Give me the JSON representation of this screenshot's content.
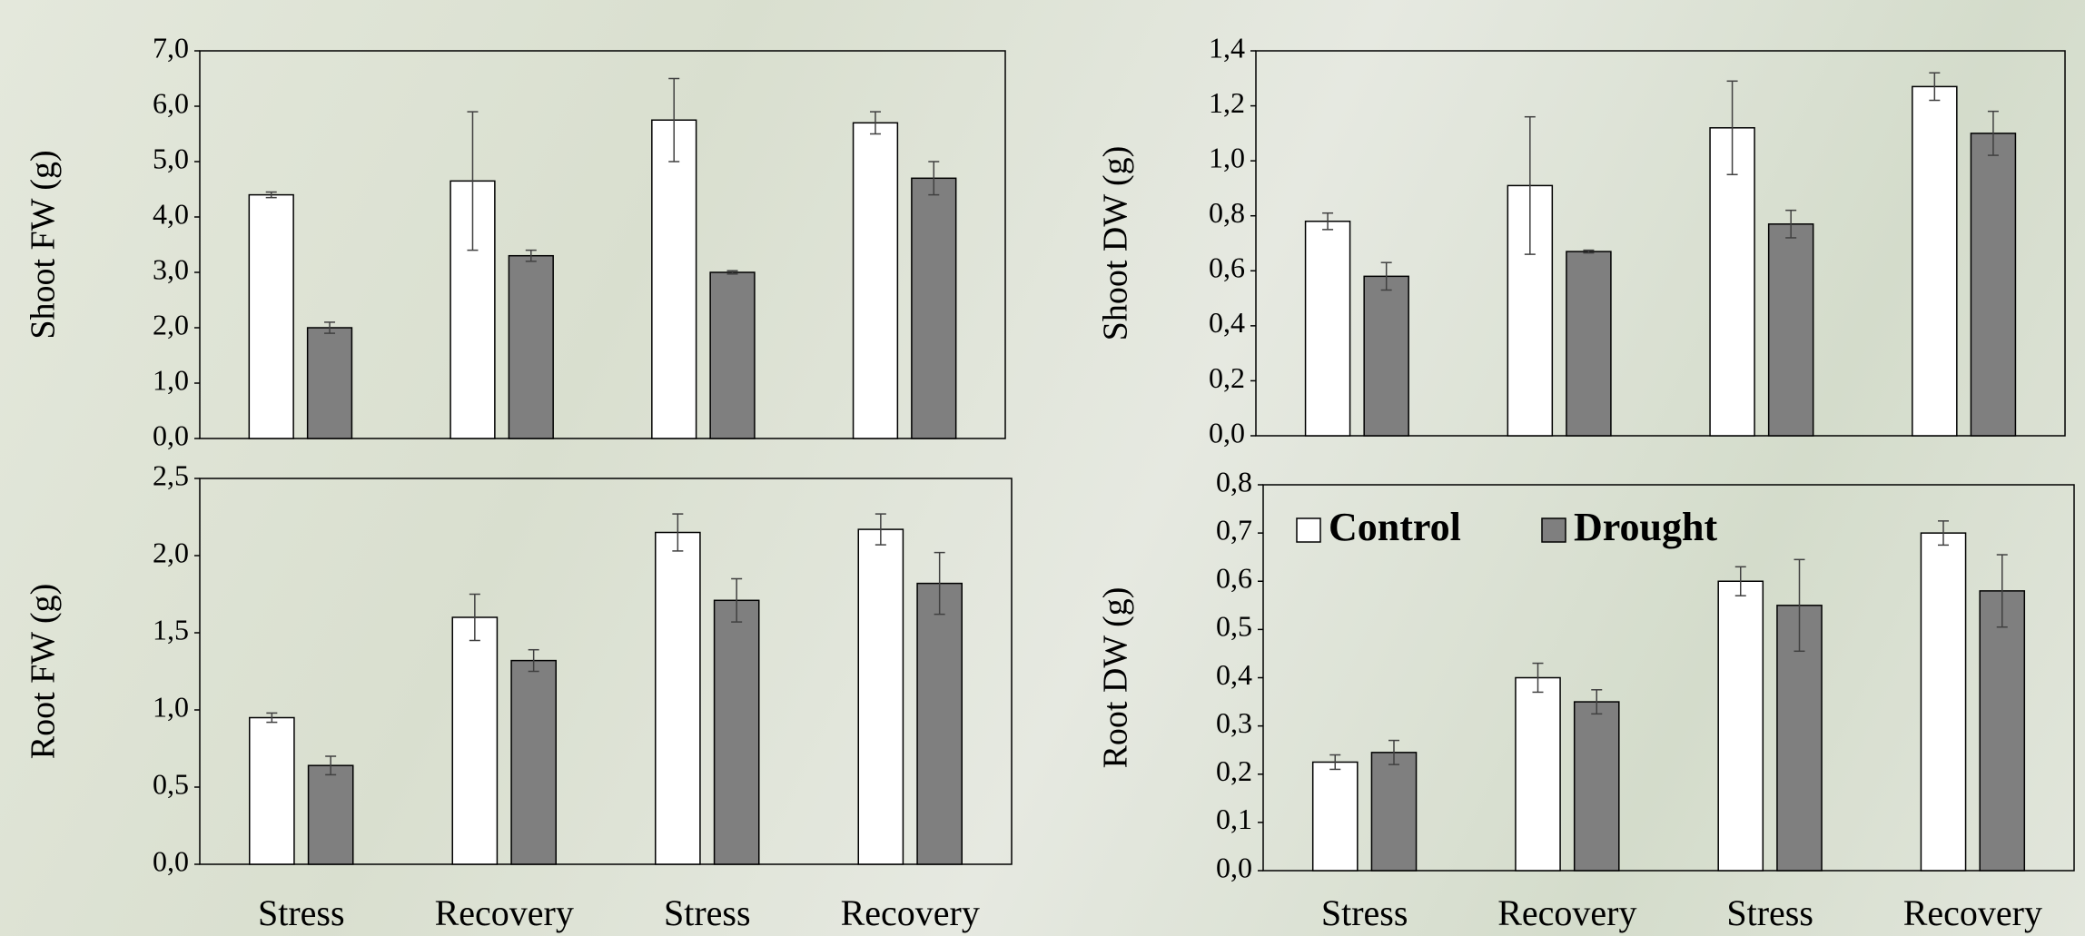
{
  "chart_data": [
    {
      "type": "bar",
      "y_label": "Shoot FW (g)",
      "ylim": [
        0,
        7
      ],
      "yticks": [
        {
          "value": 0,
          "label": "0,0"
        },
        {
          "value": 1,
          "label": "1,0"
        },
        {
          "value": 2,
          "label": "2,0"
        },
        {
          "value": 3,
          "label": "3,0"
        },
        {
          "value": 4,
          "label": "4,0"
        },
        {
          "value": 5,
          "label": "5,0"
        },
        {
          "value": 6,
          "label": "6,0"
        },
        {
          "value": 7,
          "label": "7,0"
        }
      ],
      "series": [
        {
          "color": "#ffffff",
          "values": [
            4.4,
            4.65,
            5.75,
            5.7
          ],
          "errors": [
            0.05,
            1.25,
            0.75,
            0.2
          ]
        },
        {
          "color": "#7f7f7f",
          "values": [
            2.0,
            3.3,
            3.0,
            4.7
          ],
          "errors": [
            0.1,
            0.1,
            0.03,
            0.3
          ]
        }
      ]
    },
    {
      "type": "bar",
      "y_label": "Shoot DW (g)",
      "ylim": [
        0,
        1.4
      ],
      "yticks": [
        {
          "value": 0,
          "label": "0,0"
        },
        {
          "value": 0.2,
          "label": "0,2"
        },
        {
          "value": 0.4,
          "label": "0,4"
        },
        {
          "value": 0.6,
          "label": "0,6"
        },
        {
          "value": 0.8,
          "label": "0,8"
        },
        {
          "value": 1.0,
          "label": "1,0"
        },
        {
          "value": 1.2,
          "label": "1,2"
        },
        {
          "value": 1.4,
          "label": "1,4"
        }
      ],
      "series": [
        {
          "color": "#ffffff",
          "values": [
            0.78,
            0.91,
            1.12,
            1.27
          ],
          "errors": [
            0.03,
            0.25,
            0.17,
            0.05
          ]
        },
        {
          "color": "#7f7f7f",
          "values": [
            0.58,
            0.67,
            0.77,
            1.1
          ],
          "errors": [
            0.05,
            0.005,
            0.05,
            0.08
          ]
        }
      ]
    },
    {
      "type": "bar",
      "y_label": "Root FW (g)",
      "ylim": [
        0,
        2.5
      ],
      "yticks": [
        {
          "value": 0,
          "label": "0,0"
        },
        {
          "value": 0.5,
          "label": "0,5"
        },
        {
          "value": 1.0,
          "label": "1,0"
        },
        {
          "value": 1.5,
          "label": "1,5"
        },
        {
          "value": 2.0,
          "label": "2,0"
        },
        {
          "value": 2.5,
          "label": "2,5"
        }
      ],
      "categories": [
        "Stress",
        "Recovery",
        "Stress",
        "Recovery"
      ],
      "series": [
        {
          "color": "#ffffff",
          "values": [
            0.95,
            1.6,
            2.15,
            2.17
          ],
          "errors": [
            0.03,
            0.15,
            0.12,
            0.1
          ]
        },
        {
          "color": "#7f7f7f",
          "values": [
            0.64,
            1.32,
            1.71,
            1.82
          ],
          "errors": [
            0.06,
            0.07,
            0.14,
            0.2
          ]
        }
      ]
    },
    {
      "type": "bar",
      "y_label": "Root DW (g)",
      "ylim": [
        0,
        0.8
      ],
      "yticks": [
        {
          "value": 0,
          "label": "0,0"
        },
        {
          "value": 0.1,
          "label": "0,1"
        },
        {
          "value": 0.2,
          "label": "0,2"
        },
        {
          "value": 0.3,
          "label": "0,3"
        },
        {
          "value": 0.4,
          "label": "0,4"
        },
        {
          "value": 0.5,
          "label": "0,5"
        },
        {
          "value": 0.6,
          "label": "0,6"
        },
        {
          "value": 0.7,
          "label": "0,7"
        },
        {
          "value": 0.8,
          "label": "0,8"
        }
      ],
      "categories": [
        "Stress",
        "Recovery",
        "Stress",
        "Recovery"
      ],
      "legend": "upper left",
      "series": [
        {
          "name": "Control",
          "color": "#ffffff",
          "values": [
            0.225,
            0.4,
            0.6,
            0.7
          ],
          "errors": [
            0.015,
            0.03,
            0.03,
            0.025
          ]
        },
        {
          "name": "Drought",
          "color": "#7f7f7f",
          "values": [
            0.245,
            0.35,
            0.55,
            0.58
          ],
          "errors": [
            0.025,
            0.025,
            0.095,
            0.075
          ]
        }
      ]
    }
  ]
}
